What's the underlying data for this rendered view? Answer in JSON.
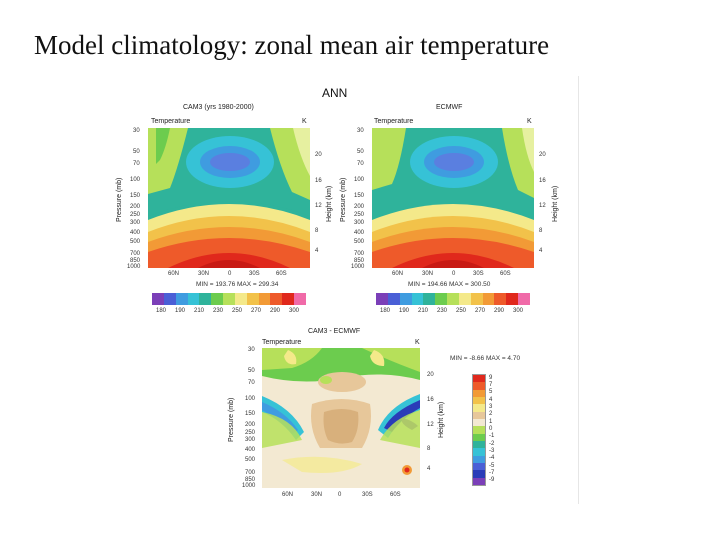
{
  "slide": {
    "title": "Model climatology: zonal mean air temperature"
  },
  "figure": {
    "header": "ANN",
    "top_left": {
      "subtitle": "CAM3 (yrs 1980-2000)",
      "var": "Temperature",
      "unit": "K",
      "ylabel": "Pressure (mb)",
      "ylabel_right": "Height (km)",
      "xticks": [
        "60N",
        "30N",
        "0",
        "30S",
        "60S"
      ],
      "stats": "MIN = 193.76  MAX = 299.34",
      "colorbar_ticks": [
        "180",
        "190",
        "210",
        "230",
        "250",
        "270",
        "290",
        "300"
      ]
    },
    "top_right": {
      "subtitle": "ECMWF",
      "var": "Temperature",
      "unit": "K",
      "ylabel": "Pressure (mb)",
      "ylabel_right": "Height (km)",
      "xticks": [
        "60N",
        "30N",
        "0",
        "30S",
        "60S"
      ],
      "stats": "MIN = 194.66  MAX = 300.50",
      "colorbar_ticks": [
        "180",
        "190",
        "210",
        "230",
        "250",
        "270",
        "290",
        "300"
      ]
    },
    "bottom": {
      "subtitle": "CAM3 - ECMWF",
      "var": "Temperature",
      "unit": "K",
      "ylabel": "Pressure (mb)",
      "ylabel_right": "Height (km)",
      "stats": "MIN = -8.66  MAX = 4.70",
      "xticks": [
        "60N",
        "30N",
        "0",
        "30S",
        "60S"
      ],
      "yticks": [
        "30",
        "50",
        "70",
        "100",
        "150",
        "200",
        "250",
        "300",
        "400",
        "500",
        "700",
        "850",
        "1000"
      ],
      "legend": [
        "9",
        "7",
        "5",
        "4",
        "3",
        "2",
        "1",
        "0",
        "-1",
        "-2",
        "-3",
        "-4",
        "-5",
        "-7",
        "-9"
      ]
    },
    "left_yticks": [
      "30",
      "50",
      "70",
      "100",
      "150",
      "200",
      "250",
      "300",
      "400",
      "500",
      "700",
      "850",
      "1000"
    ],
    "right_ticks": [
      "20",
      "16",
      "12",
      "8",
      "4"
    ],
    "colors": {
      "abs_scale": [
        "#7b3fb8",
        "#4a5fd6",
        "#3f9ce0",
        "#36c2d6",
        "#2fb39b",
        "#6ccc4e",
        "#b6e05a",
        "#f4e98a",
        "#f2c24a",
        "#f29a36",
        "#ee5a2a",
        "#e0281c",
        "#f06aa8"
      ],
      "diff_scale": [
        "#e0281c",
        "#ee5a2a",
        "#f29a36",
        "#f2c24a",
        "#f4e98a",
        "#e7c79a",
        "#f3e9d2",
        "#b6e05a",
        "#6ccc4e",
        "#2fb39b",
        "#36c2d6",
        "#3f9ce0",
        "#4a5fd6",
        "#2a3cb8",
        "#7b3fb8"
      ]
    }
  }
}
